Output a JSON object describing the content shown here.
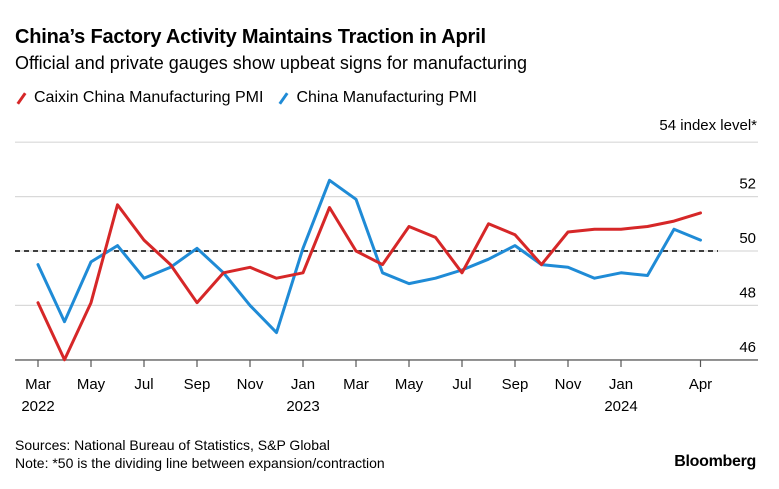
{
  "title": "China’s Factory Activity Maintains Traction in April",
  "subtitle": "Official and private gauges show upbeat signs for manufacturing",
  "unit_label": "54 index level*",
  "sources": "Sources: National Bureau of Statistics, S&P Global",
  "note": "Note: *50 is the dividing line between expansion/contraction",
  "brand": "Bloomberg",
  "colors": {
    "caixin": "#d62728",
    "official": "#1f8bd6"
  },
  "chart_data": {
    "type": "line",
    "title": "China’s Factory Activity Maintains Traction in April",
    "x": [
      "2022-03",
      "2022-04",
      "2022-05",
      "2022-06",
      "2022-07",
      "2022-08",
      "2022-09",
      "2022-10",
      "2022-11",
      "2022-12",
      "2023-01",
      "2023-02",
      "2023-03",
      "2023-04",
      "2023-05",
      "2023-06",
      "2023-07",
      "2023-08",
      "2023-09",
      "2023-10",
      "2023-11",
      "2023-12",
      "2024-01",
      "2024-02",
      "2024-03",
      "2024-04"
    ],
    "series": [
      {
        "name": "Caixin China Manufacturing PMI",
        "values": [
          48.1,
          46.0,
          48.1,
          51.7,
          50.4,
          49.5,
          48.1,
          49.2,
          49.4,
          49.0,
          49.2,
          51.6,
          50.0,
          49.5,
          50.9,
          50.5,
          49.2,
          51.0,
          50.6,
          49.5,
          50.7,
          50.8,
          50.8,
          50.9,
          51.1,
          51.4
        ]
      },
      {
        "name": "China Manufacturing PMI",
        "values": [
          49.5,
          47.4,
          49.6,
          50.2,
          49.0,
          49.4,
          50.1,
          49.2,
          48.0,
          47.0,
          50.1,
          52.6,
          51.9,
          49.2,
          48.8,
          49.0,
          49.3,
          49.7,
          50.2,
          49.5,
          49.4,
          49.0,
          49.2,
          49.1,
          50.8,
          50.4
        ]
      }
    ],
    "ylim": [
      45.5,
      54
    ],
    "yticks": [
      46,
      48,
      50,
      52,
      54
    ],
    "ytick_labels": [
      "46",
      "48",
      "50",
      "52",
      "54 index level*"
    ],
    "reference_line": 50,
    "xticks": [
      {
        "index": 0,
        "label": "Mar",
        "year": "2022"
      },
      {
        "index": 2,
        "label": "May",
        "year": ""
      },
      {
        "index": 4,
        "label": "Jul",
        "year": ""
      },
      {
        "index": 6,
        "label": "Sep",
        "year": ""
      },
      {
        "index": 8,
        "label": "Nov",
        "year": ""
      },
      {
        "index": 10,
        "label": "Jan",
        "year": "2023"
      },
      {
        "index": 12,
        "label": "Mar",
        "year": ""
      },
      {
        "index": 14,
        "label": "May",
        "year": ""
      },
      {
        "index": 16,
        "label": "Jul",
        "year": ""
      },
      {
        "index": 18,
        "label": "Sep",
        "year": ""
      },
      {
        "index": 20,
        "label": "Nov",
        "year": ""
      },
      {
        "index": 22,
        "label": "Jan",
        "year": "2024"
      },
      {
        "index": 25,
        "label": "Apr",
        "year": ""
      }
    ],
    "legend": "top-left",
    "grid": true
  }
}
